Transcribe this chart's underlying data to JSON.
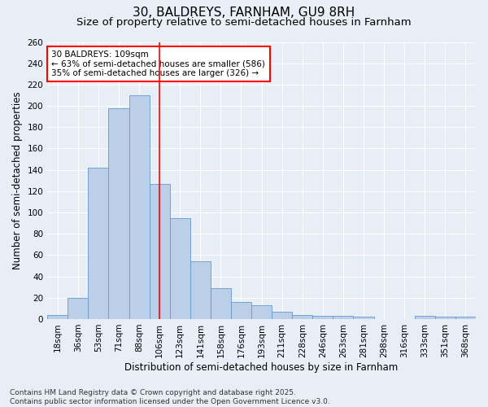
{
  "title": "30, BALDREYS, FARNHAM, GU9 8RH",
  "subtitle": "Size of property relative to semi-detached houses in Farnham",
  "xlabel": "Distribution of semi-detached houses by size in Farnham",
  "ylabel": "Number of semi-detached properties",
  "bins": [
    "18sqm",
    "36sqm",
    "53sqm",
    "71sqm",
    "88sqm",
    "106sqm",
    "123sqm",
    "141sqm",
    "158sqm",
    "176sqm",
    "193sqm",
    "211sqm",
    "228sqm",
    "246sqm",
    "263sqm",
    "281sqm",
    "298sqm",
    "316sqm",
    "333sqm",
    "351sqm",
    "368sqm"
  ],
  "bar_values": [
    4,
    20,
    142,
    198,
    210,
    127,
    95,
    54,
    29,
    16,
    13,
    7,
    4,
    3,
    3,
    2,
    0,
    0,
    3,
    2,
    2
  ],
  "bar_color": "#BBCFE8",
  "bar_edgecolor": "#6699CC",
  "highlight_bin_index": 5,
  "annotation_line1": "30 BALDREYS: 109sqm",
  "annotation_line2": "← 63% of semi-detached houses are smaller (586)",
  "annotation_line3": "35% of semi-detached houses are larger (326) →",
  "ylim": [
    0,
    260
  ],
  "yticks": [
    0,
    20,
    40,
    60,
    80,
    100,
    120,
    140,
    160,
    180,
    200,
    220,
    240,
    260
  ],
  "footer_line1": "Contains HM Land Registry data © Crown copyright and database right 2025.",
  "footer_line2": "Contains public sector information licensed under the Open Government Licence v3.0.",
  "bg_color": "#E8EEF6",
  "grid_color": "#FFFFFF",
  "title_fontsize": 11,
  "subtitle_fontsize": 9.5,
  "axis_label_fontsize": 8.5,
  "tick_fontsize": 7.5,
  "annotation_fontsize": 7.5,
  "footer_fontsize": 6.5
}
